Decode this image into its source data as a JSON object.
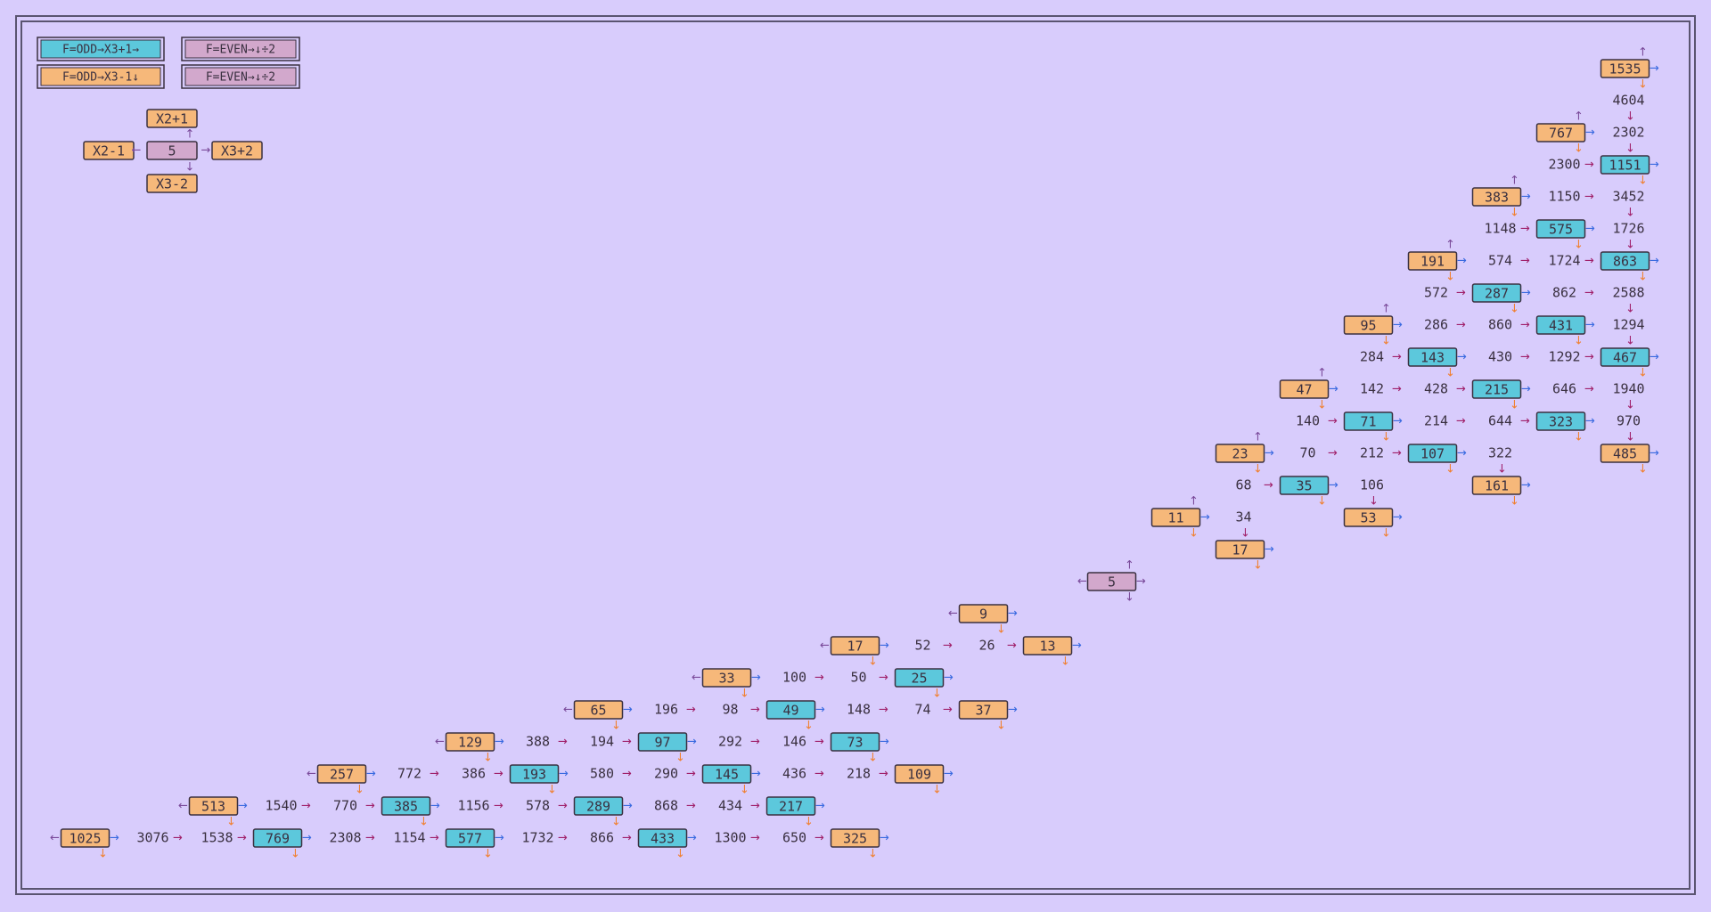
{
  "legend": [
    "F=ODD→X3+1→",
    "F=EVEN→↓÷2",
    "F=ODD→X3-1↓",
    "F=EVEN→↓÷2"
  ],
  "key": {
    "up": "X2+1",
    "left": "X2-1",
    "center": "5",
    "right": "X3+2",
    "down": "X3-2"
  },
  "nodes": [
    {
      "label": 1535,
      "kind": "orange"
    },
    {
      "label": 4604,
      "kind": "plain"
    },
    {
      "label": 767,
      "kind": "orange"
    },
    {
      "label": 2302,
      "kind": "plain"
    },
    {
      "label": 2300,
      "kind": "plain"
    },
    {
      "label": 1151,
      "kind": "cyan"
    },
    {
      "label": 383,
      "kind": "orange"
    },
    {
      "label": 1150,
      "kind": "plain"
    },
    {
      "label": 3452,
      "kind": "plain"
    },
    {
      "label": 1148,
      "kind": "plain"
    },
    {
      "label": 575,
      "kind": "cyan"
    },
    {
      "label": 1726,
      "kind": "plain"
    },
    {
      "label": 191,
      "kind": "orange"
    },
    {
      "label": 574,
      "kind": "plain"
    },
    {
      "label": 1724,
      "kind": "plain"
    },
    {
      "label": 863,
      "kind": "cyan"
    },
    {
      "label": 572,
      "kind": "plain"
    },
    {
      "label": 287,
      "kind": "cyan"
    },
    {
      "label": 862,
      "kind": "plain"
    },
    {
      "label": 2588,
      "kind": "plain"
    },
    {
      "label": 95,
      "kind": "orange"
    },
    {
      "label": 286,
      "kind": "plain"
    },
    {
      "label": 860,
      "kind": "plain"
    },
    {
      "label": 431,
      "kind": "cyan"
    },
    {
      "label": 1294,
      "kind": "plain"
    },
    {
      "label": 284,
      "kind": "plain"
    },
    {
      "label": 143,
      "kind": "cyan"
    },
    {
      "label": 430,
      "kind": "plain"
    },
    {
      "label": 1292,
      "kind": "plain"
    },
    {
      "label": 467,
      "kind": "cyan"
    },
    {
      "label": 47,
      "kind": "orange"
    },
    {
      "label": 142,
      "kind": "plain"
    },
    {
      "label": 428,
      "kind": "plain"
    },
    {
      "label": 215,
      "kind": "cyan"
    },
    {
      "label": 646,
      "kind": "plain"
    },
    {
      "label": 1940,
      "kind": "plain"
    },
    {
      "label": 140,
      "kind": "plain"
    },
    {
      "label": 71,
      "kind": "cyan"
    },
    {
      "label": 214,
      "kind": "plain"
    },
    {
      "label": 644,
      "kind": "plain"
    },
    {
      "label": 323,
      "kind": "cyan"
    },
    {
      "label": 970,
      "kind": "plain"
    },
    {
      "label": 23,
      "kind": "orange"
    },
    {
      "label": 70,
      "kind": "plain"
    },
    {
      "label": 212,
      "kind": "plain"
    },
    {
      "label": 107,
      "kind": "cyan"
    },
    {
      "label": 322,
      "kind": "plain"
    },
    {
      "label": 485,
      "kind": "orange"
    },
    {
      "label": 68,
      "kind": "plain"
    },
    {
      "label": 35,
      "kind": "cyan"
    },
    {
      "label": 106,
      "kind": "plain"
    },
    {
      "label": 161,
      "kind": "orange"
    },
    {
      "label": 11,
      "kind": "orange"
    },
    {
      "label": 34,
      "kind": "plain"
    },
    {
      "label": 53,
      "kind": "orange"
    },
    {
      "label": 17,
      "kind": "orange"
    },
    {
      "label": 5,
      "kind": "pink"
    },
    {
      "label": 9,
      "kind": "orange"
    },
    {
      "label": 17,
      "kind": "orange"
    },
    {
      "label": 52,
      "kind": "plain"
    },
    {
      "label": 26,
      "kind": "plain"
    },
    {
      "label": 13,
      "kind": "orange"
    },
    {
      "label": 33,
      "kind": "orange"
    },
    {
      "label": 100,
      "kind": "plain"
    },
    {
      "label": 50,
      "kind": "plain"
    },
    {
      "label": 25,
      "kind": "cyan"
    },
    {
      "label": 65,
      "kind": "orange"
    },
    {
      "label": 196,
      "kind": "plain"
    },
    {
      "label": 98,
      "kind": "plain"
    },
    {
      "label": 49,
      "kind": "cyan"
    },
    {
      "label": 148,
      "kind": "plain"
    },
    {
      "label": 74,
      "kind": "plain"
    },
    {
      "label": 37,
      "kind": "orange"
    },
    {
      "label": 129,
      "kind": "orange"
    },
    {
      "label": 388,
      "kind": "plain"
    },
    {
      "label": 194,
      "kind": "plain"
    },
    {
      "label": 97,
      "kind": "cyan"
    },
    {
      "label": 292,
      "kind": "plain"
    },
    {
      "label": 146,
      "kind": "plain"
    },
    {
      "label": 73,
      "kind": "cyan"
    },
    {
      "label": 257,
      "kind": "orange"
    },
    {
      "label": 772,
      "kind": "plain"
    },
    {
      "label": 386,
      "kind": "plain"
    },
    {
      "label": 193,
      "kind": "cyan"
    },
    {
      "label": 580,
      "kind": "plain"
    },
    {
      "label": 290,
      "kind": "plain"
    },
    {
      "label": 145,
      "kind": "cyan"
    },
    {
      "label": 436,
      "kind": "plain"
    },
    {
      "label": 218,
      "kind": "plain"
    },
    {
      "label": 109,
      "kind": "orange"
    },
    {
      "label": 513,
      "kind": "orange"
    },
    {
      "label": 1540,
      "kind": "plain"
    },
    {
      "label": 770,
      "kind": "plain"
    },
    {
      "label": 385,
      "kind": "cyan"
    },
    {
      "label": 1156,
      "kind": "plain"
    },
    {
      "label": 578,
      "kind": "plain"
    },
    {
      "label": 289,
      "kind": "cyan"
    },
    {
      "label": 868,
      "kind": "plain"
    },
    {
      "label": 434,
      "kind": "plain"
    },
    {
      "label": 217,
      "kind": "cyan"
    },
    {
      "label": 1025,
      "kind": "orange"
    },
    {
      "label": 3076,
      "kind": "plain"
    },
    {
      "label": 1538,
      "kind": "plain"
    },
    {
      "label": 769,
      "kind": "cyan"
    },
    {
      "label": 2308,
      "kind": "plain"
    },
    {
      "label": 1154,
      "kind": "plain"
    },
    {
      "label": 577,
      "kind": "cyan"
    },
    {
      "label": 1732,
      "kind": "plain"
    },
    {
      "label": 866,
      "kind": "plain"
    },
    {
      "label": 433,
      "kind": "cyan"
    },
    {
      "label": 1300,
      "kind": "plain"
    },
    {
      "label": 650,
      "kind": "plain"
    },
    {
      "label": 325,
      "kind": "orange"
    }
  ]
}
